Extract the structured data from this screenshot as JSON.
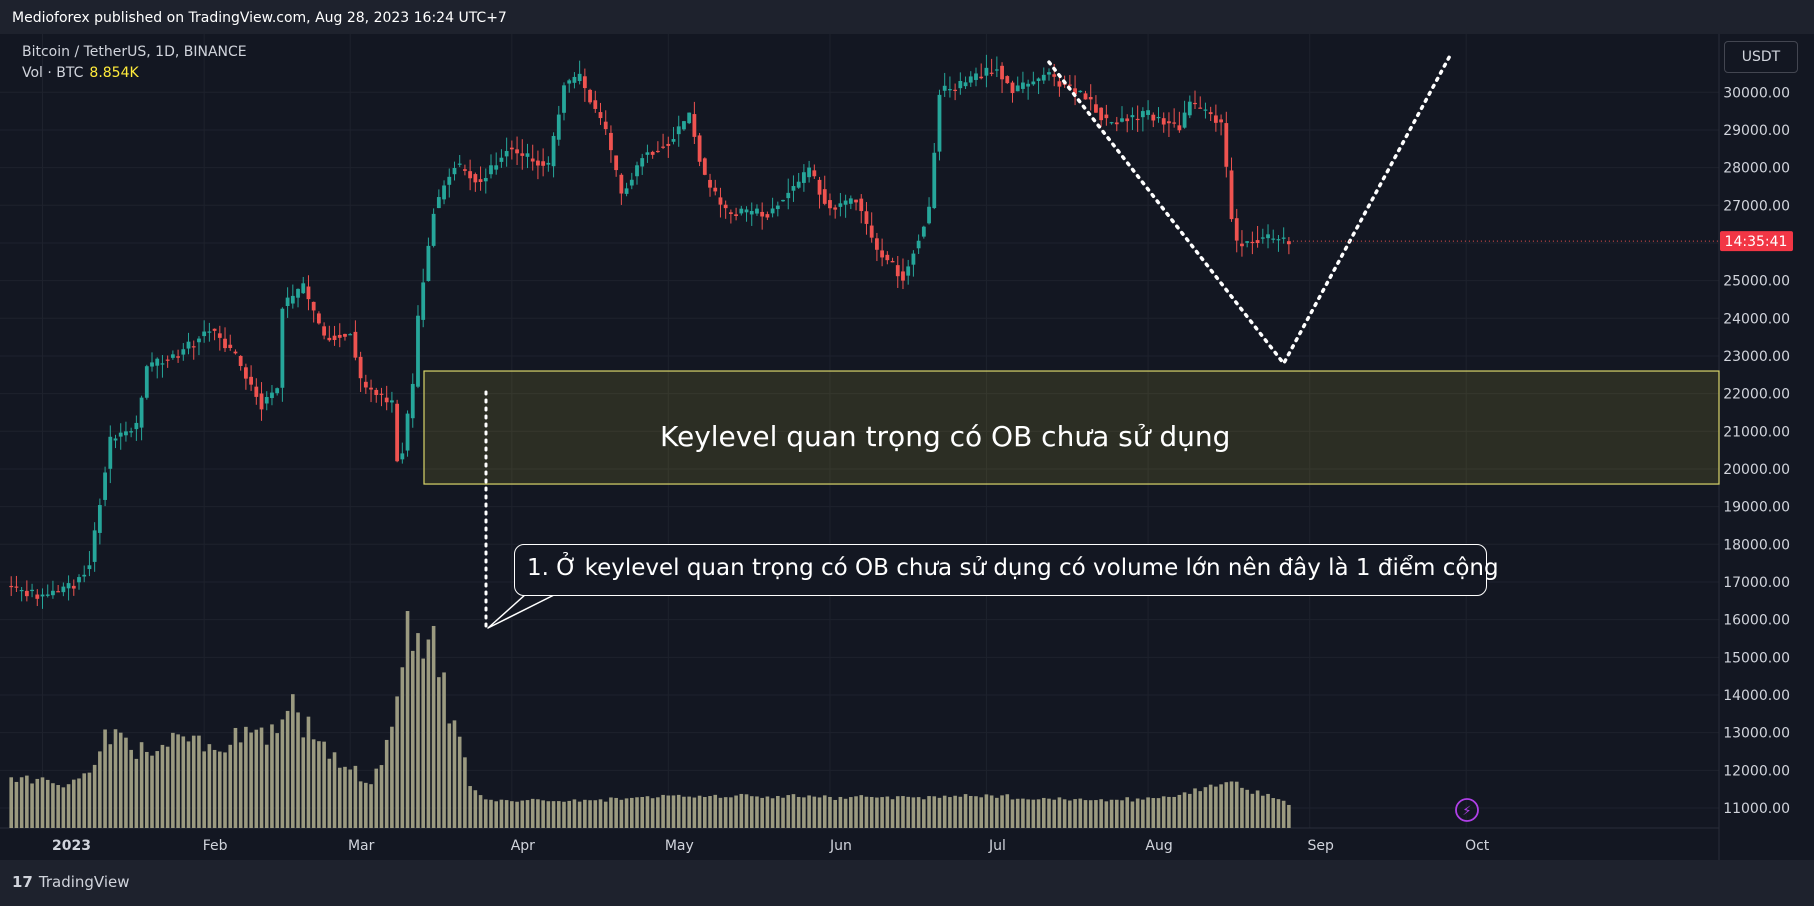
{
  "header": {
    "published": "Medioforex published on TradingView.com, Aug 28, 2023 16:24 UTC+7"
  },
  "legend": {
    "symbol": "Bitcoin / TetherUS, 1D, BINANCE",
    "vol_label": "Vol · BTC",
    "vol_value": "8.854K"
  },
  "currency_button": "USDT",
  "countdown": "14:35:41",
  "brand": {
    "logo": "17",
    "name": "TradingView"
  },
  "annotations": {
    "zone_label": "Keylevel quan trọng có OB chưa sử dụng",
    "callout": "1. Ở keylevel quan trọng có OB chưa sử dụng có volume lớn nên đây là 1 điểm cộng"
  },
  "colors": {
    "background": "#131722",
    "up": "#26a69a",
    "down": "#ef5350",
    "volume": "#9b9a80",
    "zone_border": "#d9d56a",
    "countdown_bg": "#f23645"
  },
  "chart_data": {
    "type": "candlestick",
    "symbol": "BTCUSDT",
    "interval": "1D",
    "y_axis": {
      "min": 10500,
      "max": 31000,
      "ticks": [
        11000,
        12000,
        13000,
        14000,
        15000,
        16000,
        17000,
        18000,
        19000,
        20000,
        21000,
        22000,
        23000,
        24000,
        25000,
        26000,
        27000,
        28000,
        29000,
        30000
      ]
    },
    "x_axis": {
      "labels": [
        "2023",
        "Feb",
        "Mar",
        "Apr",
        "May",
        "Jun",
        "Jul",
        "Aug",
        "Sep",
        "Oct"
      ]
    },
    "zone": {
      "from": 19600,
      "to": 22600
    },
    "price_path": [
      [
        "2022-12-26",
        16850
      ],
      [
        "2023-01-01",
        16600
      ],
      [
        "2023-01-07",
        16950
      ],
      [
        "2023-01-10",
        17500
      ],
      [
        "2023-01-14",
        20800
      ],
      [
        "2023-01-19",
        21100
      ],
      [
        "2023-01-21",
        22700
      ],
      [
        "2023-01-27",
        23050
      ],
      [
        "2023-02-02",
        23700
      ],
      [
        "2023-02-07",
        23000
      ],
      [
        "2023-02-12",
        21700
      ],
      [
        "2023-02-15",
        22200
      ],
      [
        "2023-02-16",
        24300
      ],
      [
        "2023-02-20",
        24800
      ],
      [
        "2023-02-24",
        23500
      ],
      [
        "2023-03-01",
        23600
      ],
      [
        "2023-03-03",
        22300
      ],
      [
        "2023-03-09",
        21700
      ],
      [
        "2023-03-10",
        20300
      ],
      [
        "2023-03-11",
        20500
      ],
      [
        "2023-03-13",
        22200
      ],
      [
        "2023-03-14",
        24000
      ],
      [
        "2023-03-17",
        26900
      ],
      [
        "2023-03-21",
        28100
      ],
      [
        "2023-03-26",
        27600
      ],
      [
        "2023-03-31",
        28500
      ],
      [
        "2023-04-05",
        28200
      ],
      [
        "2023-04-08",
        28000
      ],
      [
        "2023-04-11",
        30200
      ],
      [
        "2023-04-14",
        30400
      ],
      [
        "2023-04-19",
        28900
      ],
      [
        "2023-04-22",
        27300
      ],
      [
        "2023-04-26",
        28300
      ],
      [
        "2023-05-01",
        28700
      ],
      [
        "2023-05-05",
        29400
      ],
      [
        "2023-05-08",
        27700
      ],
      [
        "2023-05-12",
        26800
      ],
      [
        "2023-05-20",
        26800
      ],
      [
        "2023-05-28",
        27900
      ],
      [
        "2023-06-01",
        26900
      ],
      [
        "2023-06-06",
        27200
      ],
      [
        "2023-06-10",
        25800
      ],
      [
        "2023-06-15",
        25100
      ],
      [
        "2023-06-20",
        26900
      ],
      [
        "2023-06-22",
        30000
      ],
      [
        "2023-06-28",
        30300
      ],
      [
        "2023-07-03",
        30700
      ],
      [
        "2023-07-06",
        30000
      ],
      [
        "2023-07-13",
        30500
      ],
      [
        "2023-07-14",
        30300
      ],
      [
        "2023-07-20",
        29900
      ],
      [
        "2023-07-24",
        29200
      ],
      [
        "2023-08-01",
        29400
      ],
      [
        "2023-08-07",
        29100
      ],
      [
        "2023-08-09",
        29700
      ],
      [
        "2023-08-15",
        29200
      ],
      [
        "2023-08-17",
        26700
      ],
      [
        "2023-08-18",
        26000
      ],
      [
        "2023-08-22",
        26100
      ],
      [
        "2023-08-25",
        26100
      ],
      [
        "2023-08-28",
        26050
      ]
    ],
    "volume_path": [
      [
        "2022-12-26",
        11750
      ],
      [
        "2023-01-05",
        11600
      ],
      [
        "2023-01-10",
        11800
      ],
      [
        "2023-01-13",
        13200
      ],
      [
        "2023-01-19",
        12500
      ],
      [
        "2023-01-26",
        12800
      ],
      [
        "2023-02-03",
        12500
      ],
      [
        "2023-02-09",
        13000
      ],
      [
        "2023-02-15",
        12800
      ],
      [
        "2023-02-18",
        13500
      ],
      [
        "2023-02-22",
        12900
      ],
      [
        "2023-02-28",
        12200
      ],
      [
        "2023-03-05",
        11600
      ],
      [
        "2023-03-09",
        12800
      ],
      [
        "2023-03-10",
        14200
      ],
      [
        "2023-03-11",
        15300
      ],
      [
        "2023-03-13",
        15700
      ],
      [
        "2023-03-15",
        14800
      ],
      [
        "2023-03-17",
        15100
      ],
      [
        "2023-03-20",
        13700
      ],
      [
        "2023-03-22",
        13000
      ],
      [
        "2023-03-24",
        11500
      ],
      [
        "2023-03-27",
        11200
      ],
      [
        "2023-04-15",
        11150
      ],
      [
        "2023-05-01",
        11300
      ],
      [
        "2023-06-01",
        11250
      ],
      [
        "2023-06-20",
        11250
      ],
      [
        "2023-07-01",
        11300
      ],
      [
        "2023-07-15",
        11200
      ],
      [
        "2023-08-01",
        11200
      ],
      [
        "2023-08-17",
        11600
      ],
      [
        "2023-08-28",
        11100
      ]
    ],
    "projection": [
      [
        "2023-07-13",
        30800
      ],
      [
        "2023-08-27",
        22800
      ],
      [
        "2023-09-28",
        31000
      ]
    ]
  }
}
